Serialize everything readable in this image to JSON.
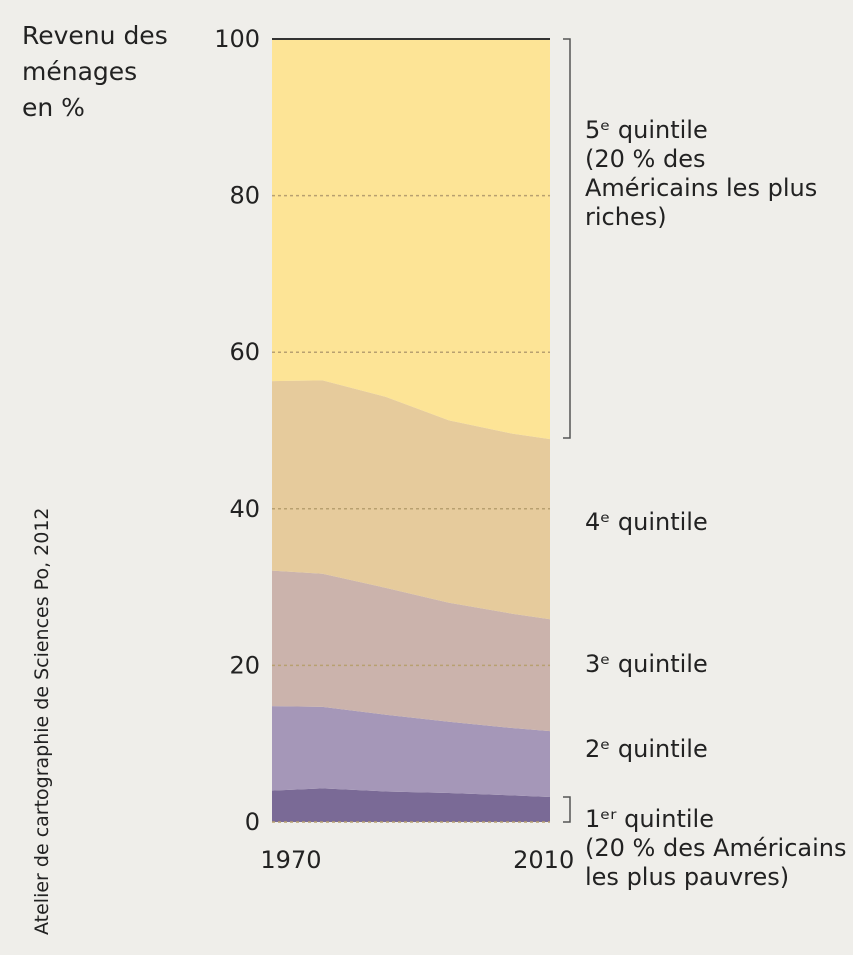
{
  "chart_data": {
    "type": "stacked_area",
    "y_axis_label": "Revenu des ménages en %",
    "source": "Atelier de cartographie de Sciences Po, 2012",
    "x": [
      1967,
      1975,
      1985,
      1995,
      2005,
      2011
    ],
    "xlim": [
      1967,
      2011
    ],
    "xticks": [
      1970,
      2010
    ],
    "ylim": [
      0,
      100
    ],
    "yticks": [
      0,
      20,
      40,
      60,
      80,
      100
    ],
    "grid": true,
    "series": [
      {
        "name": "1ᵉʳ quintile",
        "note": "(20 % des Américains les plus pauvres)",
        "color": "#7a6a96",
        "values": [
          4.0,
          4.3,
          3.9,
          3.7,
          3.4,
          3.2
        ]
      },
      {
        "name": "2ᵉ quintile",
        "color": "#a597b8",
        "values": [
          10.8,
          10.4,
          9.8,
          9.1,
          8.6,
          8.4
        ]
      },
      {
        "name": "3ᵉ quintile",
        "color": "#cbb3ac",
        "values": [
          17.3,
          17.0,
          16.2,
          15.2,
          14.6,
          14.3
        ]
      },
      {
        "name": "4ᵉ quintile",
        "color": "#e6cb9c",
        "values": [
          24.2,
          24.7,
          24.4,
          23.3,
          23.0,
          23.0
        ]
      },
      {
        "name": "5ᵉ quintile",
        "note": "(20 % des Américains les plus riches)",
        "color": "#fde496",
        "values": [
          43.7,
          43.6,
          45.7,
          48.7,
          50.4,
          51.1
        ]
      }
    ]
  }
}
